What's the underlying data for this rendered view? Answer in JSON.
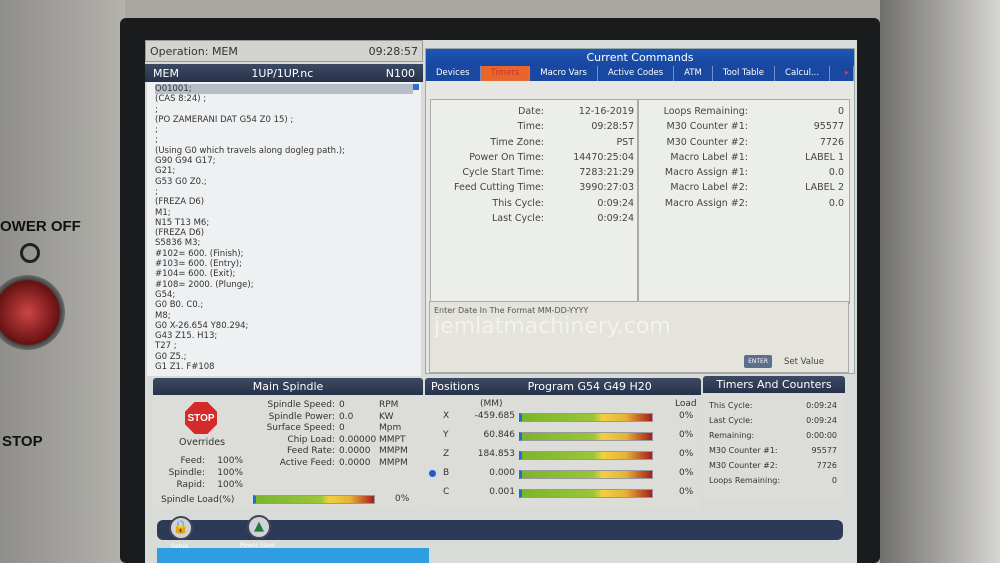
{
  "machine_panel": {
    "power_off_label": "OWER OFF",
    "stop_label": "STOP"
  },
  "operation": {
    "label": "Operation: MEM",
    "time": "09:28:57"
  },
  "program": {
    "mode": "MEM",
    "file": "1UP/1UP.nc",
    "block": "N100",
    "lines": [
      "O01001;",
      "(CAS 8:24) ;",
      ";",
      "(PO ZAMERANI DAT G54 Z0 15) ;",
      ";",
      ";",
      "(Using G0 which travels along dogleg path.);",
      "G90 G94 G17;",
      "G21;",
      "G53 G0 Z0.;",
      ";",
      "(FREZA D6)",
      "M1;",
      "N15 T13 M6;",
      "(FREZA D6)",
      "S5836 M3;",
      "#102= 600. (Finish);",
      "#103= 600. (Entry);",
      "#104= 600. (Exit);",
      "#108= 2000. (Plunge);",
      "G54;",
      "G0 B0. C0.;",
      "M8;",
      "G0 X-26.654 Y80.294;",
      "G43 Z15. H13;",
      "T27 ;",
      "G0 Z5.;",
      "G1 Z1. F#108"
    ]
  },
  "current_commands": {
    "title": "Current Commands",
    "tabs": [
      "Devices",
      "Timers",
      "Macro Vars",
      "Active Codes",
      "ATM",
      "Tool Table",
      "Calcul..."
    ],
    "active_tab": "Timers",
    "timers_left": [
      {
        "label": "Date:",
        "value": "12-16-2019"
      },
      {
        "label": "Time:",
        "value": "09:28:57"
      },
      {
        "label": "Time Zone:",
        "value": "PST"
      },
      {
        "label": "Power On Time:",
        "value": "14470:25:04"
      },
      {
        "label": "Cycle Start Time:",
        "value": "7283:21:29"
      },
      {
        "label": "Feed Cutting Time:",
        "value": "3990:27:03"
      },
      {
        "label": "This Cycle:",
        "value": "0:09:24"
      },
      {
        "label": "Last Cycle:",
        "value": "0:09:24"
      }
    ],
    "timers_right": [
      {
        "label": "Loops Remaining:",
        "value": "0"
      },
      {
        "label": "M30 Counter #1:",
        "value": "95577"
      },
      {
        "label": "M30 Counter #2:",
        "value": "7726"
      },
      {
        "label": "Macro Label #1:",
        "value": "LABEL 1"
      },
      {
        "label": "Macro Assign #1:",
        "value": "0.0"
      },
      {
        "label": "Macro Label #2:",
        "value": "LABEL 2"
      },
      {
        "label": "Macro Assign #2:",
        "value": "0.0"
      }
    ],
    "prompt": "Enter Date In The Format MM-DD-YYYY",
    "enter_key": "ENTER",
    "set_value": "Set Value"
  },
  "watermark": "jemlatmachinery.com",
  "main_spindle": {
    "title": "Main Spindle",
    "stop_label": "STOP",
    "overrides_label": "Overrides",
    "overrides": [
      {
        "label": "Feed:",
        "value": "100%"
      },
      {
        "label": "Spindle:",
        "value": "100%"
      },
      {
        "label": "Rapid:",
        "value": "100%"
      }
    ],
    "stats": [
      {
        "label": "Spindle Speed:",
        "value": "0",
        "unit": "RPM"
      },
      {
        "label": "Spindle Power:",
        "value": "0.0",
        "unit": "KW"
      },
      {
        "label": "Surface Speed:",
        "value": "0",
        "unit": "Mpm"
      },
      {
        "label": "Chip Load:",
        "value": "0.00000",
        "unit": "MMPT"
      },
      {
        "label": "Feed Rate:",
        "value": "0.0000",
        "unit": "MMPM"
      },
      {
        "label": "Active Feed:",
        "value": "0.0000",
        "unit": "MMPM"
      }
    ],
    "spindle_load_label": "Spindle Load(%)",
    "spindle_load": "0%"
  },
  "positions": {
    "title": "Positions",
    "program_codes": "Program G54 G49 H20",
    "unit": "(MM)",
    "load_label": "Load",
    "axes": [
      {
        "axis": "X",
        "value": "-459.685",
        "load": "0%"
      },
      {
        "axis": "Y",
        "value": "60.846",
        "load": "0%"
      },
      {
        "axis": "Z",
        "value": "184.853",
        "load": "0%"
      },
      {
        "axis": "B",
        "value": "0.000",
        "load": "0%"
      },
      {
        "axis": "C",
        "value": "0.001",
        "load": "0%"
      }
    ]
  },
  "timers_counters": {
    "title": "Timers And Counters",
    "rows": [
      {
        "label": "This Cycle:",
        "value": "0:09:24"
      },
      {
        "label": "Last Cycle:",
        "value": "0:09:24"
      },
      {
        "label": "Remaining:",
        "value": "0:00:00"
      },
      {
        "label": "M30 Counter #1:",
        "value": "95577"
      },
      {
        "label": "M30 Counter #2:",
        "value": "7726"
      },
      {
        "label": "Loops Remaining:",
        "value": "0"
      }
    ]
  },
  "bottom": {
    "setup_label": "Setup",
    "power_save_label": "Power Save"
  }
}
